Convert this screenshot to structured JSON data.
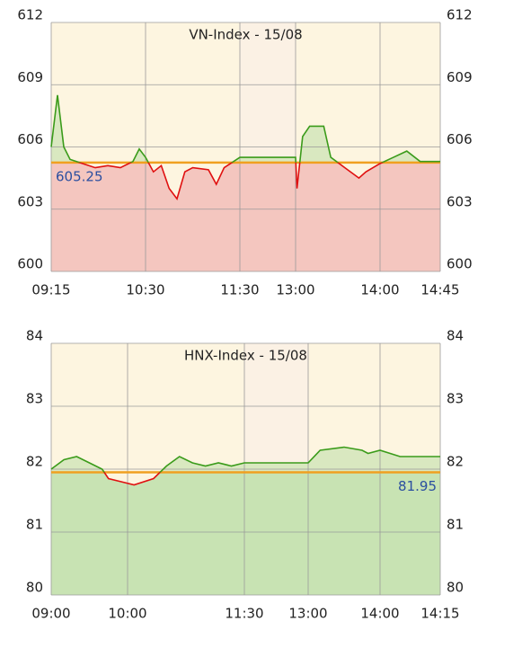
{
  "chart_data": [
    {
      "type": "line",
      "title": "VN-Index - 15/08",
      "x": [
        "09:15",
        "09:20",
        "09:25",
        "09:30",
        "09:40",
        "09:50",
        "10:00",
        "10:10",
        "10:20",
        "10:25",
        "10:30",
        "10:35",
        "10:40",
        "10:45",
        "10:50",
        "10:55",
        "11:00",
        "11:10",
        "11:15",
        "11:20",
        "11:30",
        "13:00",
        "13:01",
        "13:05",
        "13:10",
        "13:20",
        "13:25",
        "13:35",
        "13:45",
        "13:50",
        "14:00",
        "14:10",
        "14:20",
        "14:30",
        "14:45"
      ],
      "values": [
        606.0,
        608.5,
        606.0,
        605.4,
        605.2,
        605.0,
        605.1,
        605.0,
        605.3,
        605.9,
        605.5,
        604.8,
        605.1,
        604.0,
        603.5,
        604.8,
        605.0,
        604.9,
        604.2,
        605.0,
        605.5,
        605.5,
        604.0,
        606.5,
        607.0,
        607.0,
        605.5,
        605.0,
        604.5,
        604.8,
        605.2,
        605.5,
        605.8,
        605.3,
        605.3
      ],
      "reference": 605.25,
      "ylim": [
        600,
        612
      ],
      "yticks": [
        600,
        603,
        606,
        609,
        612
      ],
      "xticks": [
        "09:15",
        "10:30",
        "11:30",
        "13:00",
        "14:00",
        "14:45"
      ],
      "up_color": "#3a9b1a",
      "down_color": "#e01010",
      "reference_color": "#f0a020",
      "fill_color": "#f4c6bf",
      "grid": true
    },
    {
      "type": "line",
      "title": "HNX-Index - 15/08",
      "x": [
        "09:00",
        "09:10",
        "09:20",
        "09:30",
        "09:40",
        "09:45",
        "09:55",
        "10:05",
        "10:20",
        "10:30",
        "10:40",
        "10:50",
        "11:00",
        "11:10",
        "11:20",
        "11:30",
        "13:00",
        "13:10",
        "13:30",
        "13:45",
        "13:50",
        "14:00",
        "14:05",
        "14:10",
        "14:15"
      ],
      "values": [
        82.0,
        82.15,
        82.2,
        82.1,
        82.0,
        81.85,
        81.8,
        81.75,
        81.85,
        82.05,
        82.2,
        82.1,
        82.05,
        82.1,
        82.05,
        82.1,
        82.1,
        82.3,
        82.35,
        82.3,
        82.25,
        82.3,
        82.2,
        82.2,
        82.2
      ],
      "reference": 81.95,
      "ylim": [
        80,
        84
      ],
      "yticks": [
        80,
        81,
        82,
        83,
        84
      ],
      "xticks": [
        "09:00",
        "10:00",
        "11:30",
        "13:00",
        "14:00",
        "14:15"
      ],
      "up_color": "#3a9b1a",
      "down_color": "#e01010",
      "reference_color": "#f0a020",
      "fill_color": "#c8e3b3",
      "grid": true
    }
  ]
}
